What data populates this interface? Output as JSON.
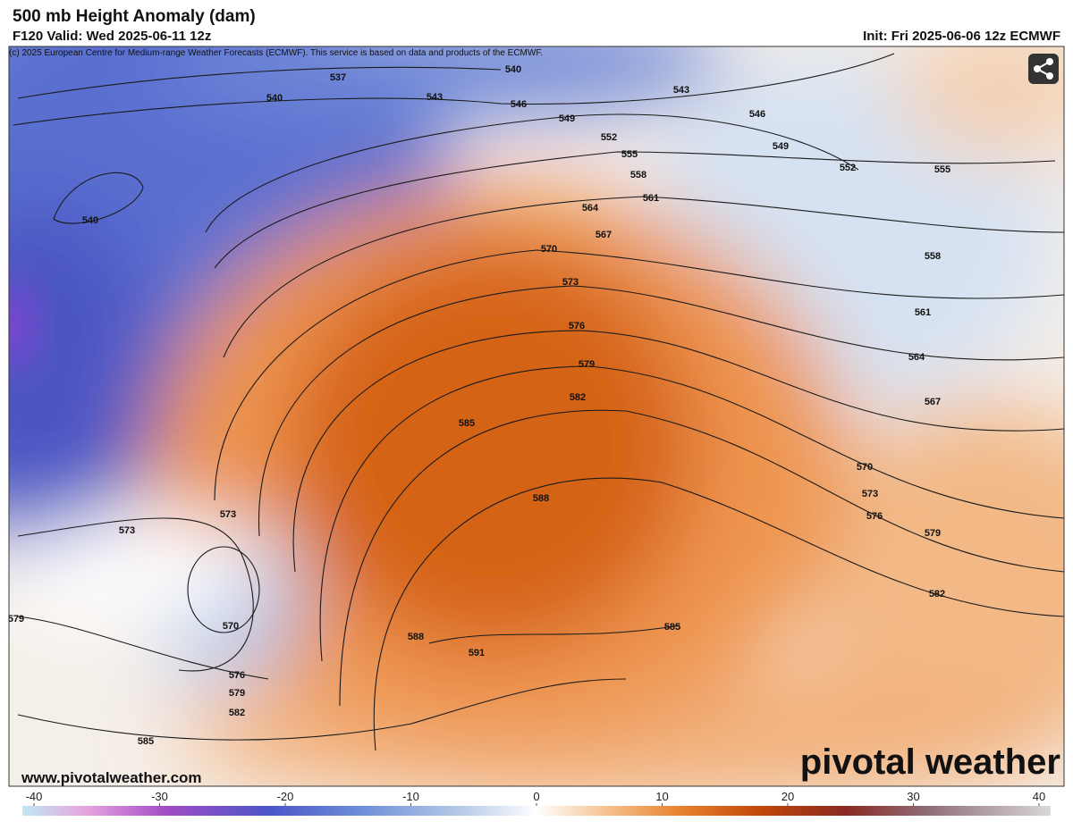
{
  "header": {
    "title": "500 mb Height Anomaly (dam)",
    "valid": "F120 Valid: Wed 2025-06-11 12z",
    "init": "Init: Fri 2025-06-06 12z ECMWF",
    "copyright": "(c) 2025 European Centre for Medium-range Weather Forecasts (ECMWF). This service is based on data and products of the ECMWF."
  },
  "map": {
    "contour_labels": [
      537,
      540,
      540,
      543,
      546,
      549,
      543,
      546,
      549,
      552,
      555,
      552,
      555,
      558,
      561,
      564,
      567,
      570,
      558,
      573,
      576,
      561,
      579,
      564,
      582,
      567,
      585,
      540,
      570,
      573,
      576,
      579,
      588,
      573,
      573,
      582,
      579,
      570,
      588,
      585,
      591,
      576,
      579,
      582,
      585
    ]
  },
  "footer": {
    "website": "www.pivotalweather.com",
    "logo": "pivotal weather"
  },
  "colorbar": {
    "ticks": [
      -40,
      -30,
      -20,
      -10,
      0,
      10,
      20,
      30,
      40
    ]
  }
}
